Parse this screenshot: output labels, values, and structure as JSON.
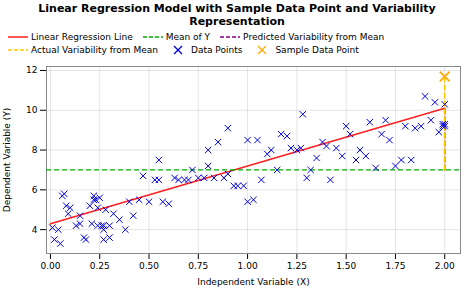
{
  "chart_data": {
    "type": "scatter",
    "title": "Linear Regression Model with Sample Data Point and Variability Representation",
    "xlabel": "Independent Variable (X)",
    "ylabel": "Dependent Variable (Y)",
    "xlim": [
      -0.02,
      2.08
    ],
    "ylim": [
      2.8,
      12.2
    ],
    "xticks": [
      {
        "value": 0,
        "label": "0.00"
      },
      0.25,
      {
        "value": 0.5,
        "label": "0.50"
      },
      0.75,
      {
        "value": 1,
        "label": "1.00"
      },
      1.25,
      {
        "value": 1.5,
        "label": "1.50"
      },
      1.75,
      {
        "value": 2,
        "label": "2.00"
      }
    ],
    "yticks": [
      4,
      6,
      8,
      10,
      12
    ],
    "grid": true,
    "legend": "upper left",
    "series": [
      {
        "name": "Linear Regression Line",
        "type": "line",
        "color": "#ff2020",
        "line_style": "solid",
        "x": [
          0.0,
          2.0
        ],
        "values": [
          4.3,
          10.1
        ]
      },
      {
        "name": "Mean of Y",
        "type": "hline",
        "color": "#00aa00",
        "line_style": "dashed",
        "values": [
          7.0
        ]
      },
      {
        "name": "Predicted Variability from Mean",
        "type": "line",
        "color": "#800080",
        "line_style": "dashed",
        "x": [
          2.0,
          2.0
        ],
        "values": [
          7.0,
          10.1
        ]
      },
      {
        "name": "Actual Variability from Mean",
        "type": "line",
        "color": "#ffcc00",
        "line_style": "dashed",
        "x": [
          2.0,
          2.0
        ],
        "values": [
          7.0,
          11.7
        ]
      },
      {
        "name": "Data Points",
        "type": "scatter",
        "marker": "x",
        "color": "#0000dd",
        "x": [
          0.01,
          0.02,
          0.04,
          0.05,
          0.06,
          0.07,
          0.08,
          0.09,
          0.1,
          0.13,
          0.15,
          0.15,
          0.17,
          0.18,
          0.2,
          0.21,
          0.22,
          0.22,
          0.23,
          0.24,
          0.24,
          0.25,
          0.26,
          0.27,
          0.27,
          0.27,
          0.28,
          0.3,
          0.3,
          0.32,
          0.35,
          0.38,
          0.4,
          0.42,
          0.45,
          0.47,
          0.5,
          0.53,
          0.55,
          0.55,
          0.57,
          0.6,
          0.63,
          0.65,
          0.68,
          0.7,
          0.72,
          0.75,
          0.78,
          0.8,
          0.8,
          0.83,
          0.85,
          0.88,
          0.9,
          0.9,
          0.93,
          0.95,
          0.98,
          1.0,
          1.0,
          1.03,
          1.05,
          1.07,
          1.1,
          1.12,
          1.15,
          1.17,
          1.2,
          1.22,
          1.25,
          1.27,
          1.28,
          1.3,
          1.32,
          1.35,
          1.38,
          1.4,
          1.42,
          1.45,
          1.48,
          1.5,
          1.52,
          1.55,
          1.57,
          1.6,
          1.62,
          1.65,
          1.68,
          1.7,
          1.72,
          1.75,
          1.78,
          1.8,
          1.83,
          1.85,
          1.88,
          1.9,
          1.93,
          1.95,
          1.97,
          1.99,
          1.99,
          2.0,
          2.0,
          2.0
        ],
        "values": [
          4.1,
          3.5,
          4.0,
          3.3,
          5.7,
          5.8,
          5.2,
          4.8,
          5.1,
          4.2,
          4.7,
          4.3,
          3.6,
          3.5,
          5.2,
          4.3,
          5.7,
          5.5,
          5.5,
          4.2,
          5.1,
          5.6,
          4.2,
          4.0,
          3.5,
          4.2,
          5.0,
          3.6,
          4.2,
          4.8,
          4.5,
          4.0,
          5.4,
          4.7,
          5.5,
          6.7,
          5.4,
          6.5,
          6.5,
          7.5,
          5.4,
          5.3,
          6.6,
          6.5,
          6.5,
          6.5,
          7.0,
          6.6,
          6.6,
          7.2,
          8.0,
          6.6,
          8.4,
          6.6,
          6.8,
          9.1,
          6.2,
          6.2,
          6.2,
          5.4,
          8.5,
          5.5,
          8.5,
          6.5,
          7.8,
          8.0,
          7.0,
          8.8,
          8.7,
          8.1,
          8.0,
          8.1,
          9.8,
          6.6,
          7.0,
          7.6,
          8.4,
          8.2,
          6.5,
          8.1,
          7.7,
          9.2,
          8.8,
          7.5,
          8.0,
          7.7,
          9.4,
          7.1,
          8.8,
          9.5,
          8.5,
          7.2,
          7.5,
          9.2,
          7.5,
          9.1,
          9.2,
          10.7,
          9.5,
          10.4,
          8.9,
          9.3,
          9.2,
          10.3,
          9.2,
          9.3
        ]
      },
      {
        "name": "Sample Data Point",
        "type": "scatter",
        "marker": "x",
        "color": "#ffaa00",
        "x": [
          2.0
        ],
        "values": [
          11.7
        ]
      }
    ]
  }
}
